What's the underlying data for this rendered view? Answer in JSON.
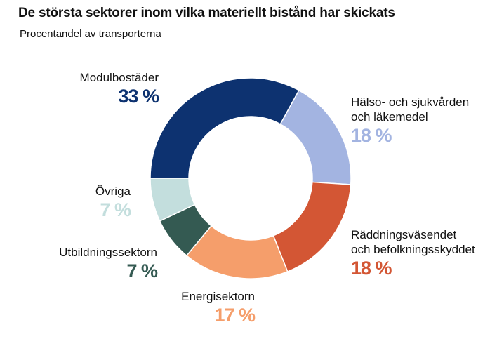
{
  "chart_data": {
    "type": "pie",
    "variant": "donut",
    "title": "De största sektorer inom vilka materiellt bistånd har skickats",
    "subtitle": "Procentandel av transporterna",
    "slices": [
      {
        "label": "Modulbostäder",
        "value": 33,
        "value_label": "33 %",
        "color": "#0d3270"
      },
      {
        "label": "Hälso- och sjukvården och läkemedel",
        "label_lines": [
          "Hälso- och sjukvården",
          "och läkemedel"
        ],
        "value": 18,
        "value_label": "18 %",
        "color": "#a3b4e1"
      },
      {
        "label": "Räddningsväsendet och befolkningsskyddet",
        "label_lines": [
          "Räddningsväsendet",
          "och befolkningsskyddet"
        ],
        "value": 18,
        "value_label": "18 %",
        "color": "#d35634"
      },
      {
        "label": "Energisektorn",
        "value": 17,
        "value_label": "17 %",
        "color": "#f59e6b"
      },
      {
        "label": "Utbildningssektorn",
        "value": 7,
        "value_label": "7 %",
        "color": "#345a52"
      },
      {
        "label": "Övriga",
        "value": 7,
        "value_label": "7 %",
        "color": "#c3dedd"
      }
    ]
  }
}
